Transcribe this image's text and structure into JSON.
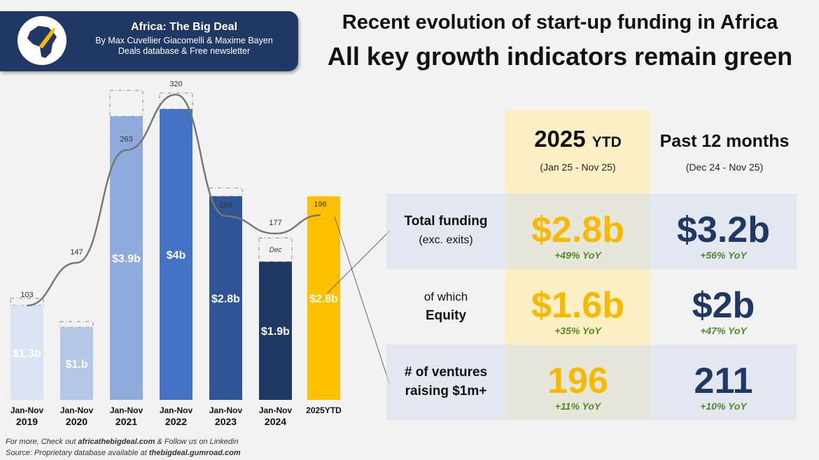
{
  "banner": {
    "title": "Africa: The Big Deal",
    "authors": "By Max Cuvellier Giacomelli & Maxime Bayen",
    "tagline": "Deals database & Free newsletter"
  },
  "title": {
    "line1": "Recent evolution of start-up funding in Africa",
    "line2": "All key growth indicators remain green"
  },
  "chart_data": {
    "type": "bar",
    "title": "",
    "categories": [
      [
        "Jan-Nov",
        "2019"
      ],
      [
        "Jan-Nov",
        "2020"
      ],
      [
        "Jan-Nov",
        "2021"
      ],
      [
        "Jan-Nov",
        "2022"
      ],
      [
        "Jan-Nov",
        "2023"
      ],
      [
        "Jan-Nov",
        "2024"
      ],
      [
        "2025YTD",
        ""
      ]
    ],
    "series": [
      {
        "name": "Funding",
        "unit": "$b",
        "values": [
          1.3,
          1.0,
          3.9,
          4,
          2.8,
          1.9,
          2.8
        ],
        "labels": [
          "$1.3b",
          "$1.b",
          "$3.9b",
          "$4b",
          "$2.8b",
          "$1.9b",
          "$2.8b"
        ]
      },
      {
        "name": "# of ventures raising $1m+",
        "type": "line",
        "values": [
          103,
          147,
          263,
          320,
          195,
          177,
          196
        ]
      }
    ],
    "annotation": "Dec",
    "colors": [
      "#dbe4f3",
      "#b4c7e7",
      "#8faadc",
      "#4472c4",
      "#2f5597",
      "#1f3864",
      "#ffc000"
    ]
  },
  "table": {
    "col1": {
      "title": "2025",
      "suffix": "YTD",
      "range": "(Jan 25 - Nov 25)"
    },
    "col2": {
      "title": "Past 12 months",
      "range": "(Dec 24 - Nov 25)"
    },
    "rows": [
      {
        "label1": "Total funding",
        "label2": "(exc. exits)",
        "ytd": "$2.8b",
        "ytd_yoy": "+49% YoY",
        "l12": "$3.2b",
        "l12_yoy": "+56% YoY"
      },
      {
        "label1": "of which",
        "label2": "Equity",
        "ytd": "$1.6b",
        "ytd_yoy": "+35% YoY",
        "l12": "$2b",
        "l12_yoy": "+47% YoY"
      },
      {
        "label1": "# of ventures",
        "label2": "raising $1m+",
        "ytd": "196",
        "ytd_yoy": "+11% YoY",
        "l12": "211",
        "l12_yoy": "+10% YoY"
      }
    ]
  },
  "footer": {
    "line1_pre": "For more, Check out ",
    "line1_link": "africathebigdeal.com",
    "line1_post": " & Follow us on Linkedin",
    "line2_pre": "Source: Proprietary database available at ",
    "line2_link": "thebigdeal.gumroad.com"
  }
}
